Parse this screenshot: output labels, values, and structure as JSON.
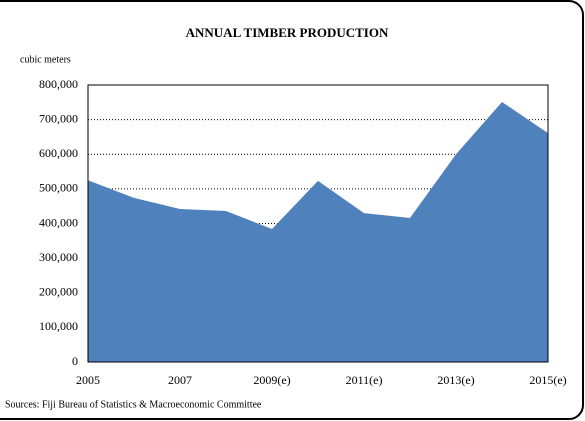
{
  "chart_data": {
    "type": "area",
    "title": "ANNUAL TIMBER PRODUCTION",
    "ylabel": "cubic meters",
    "source": "Sources:  Fiji Bureau of Statistics & Macroeconomic Committee",
    "categories": [
      "2005",
      null,
      "2007",
      null,
      "2009(e)",
      null,
      "2011(e)",
      null,
      "2013(e)",
      null,
      "2015(e)"
    ],
    "values": [
      525000,
      474000,
      442000,
      436000,
      384000,
      523000,
      430000,
      416000,
      600000,
      751000,
      661000
    ],
    "color": "#4f81bd",
    "ylim": [
      0,
      800000
    ],
    "yticks": [
      0,
      {
        "value": 100000,
        "label": "100,000"
      },
      {
        "value": 200000,
        "label": "200,000"
      },
      {
        "value": 300000,
        "label": "300,000"
      },
      {
        "value": 400000,
        "label": "400,000"
      },
      {
        "value": 500000,
        "label": "500,000"
      },
      {
        "value": 600000,
        "label": "600,000"
      },
      {
        "value": 700000,
        "label": "700,000"
      },
      {
        "value": 800000,
        "label": "800,000"
      }
    ],
    "grid": true
  }
}
